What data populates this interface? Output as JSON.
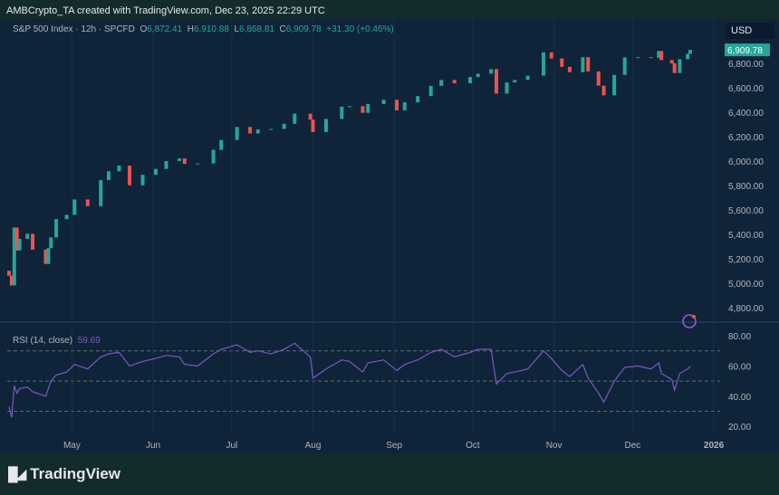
{
  "header": {
    "credit": "AMBCrypto_TA created with TradingView.com, Dec 23, 2025 22:29 UTC"
  },
  "legend": {
    "symbol": "S&P 500 Index · 12h · SPCFD",
    "o_label": "O",
    "o": "6,872.41",
    "h_label": "H",
    "h": "6,910.88",
    "l_label": "L",
    "l": "6,868.81",
    "c_label": "C",
    "c": "6,909.78",
    "change": "+31.30 (+0.46%)"
  },
  "currency": "USD",
  "last_price_label": "6,909.78",
  "rsi_legend": {
    "label": "RSI (14, close)",
    "value": "59.69"
  },
  "brand": {
    "name": "TradingView",
    "logo_text": "TV"
  },
  "colors": {
    "up": "#26a69a",
    "down": "#ef5350",
    "rsi": "#7e57c2",
    "background": "#0f2438"
  },
  "chart_data": {
    "type": "candlestick",
    "price_axis": {
      "ticks": [
        4800,
        5000,
        5200,
        5400,
        5600,
        5800,
        6000,
        6200,
        6400,
        6600,
        6800
      ],
      "tick_labels": [
        "4,800.00",
        "5,000.00",
        "5,200.00",
        "5,400.00",
        "5,600.00",
        "5,800.00",
        "6,000.00",
        "6,200.00",
        "6,400.00",
        "6,600.00",
        "6,800.00"
      ]
    },
    "rsi_axis": {
      "ticks": [
        20,
        40,
        60,
        80
      ],
      "tick_labels": [
        "20.00",
        "40.00",
        "60.00",
        "80.00"
      ],
      "bands": [
        30,
        50,
        70
      ]
    },
    "x_axis": {
      "ticks": [
        {
          "date": "2025-05-01",
          "label": "May"
        },
        {
          "date": "2025-06-01",
          "label": "Jun"
        },
        {
          "date": "2025-07-01",
          "label": "Jul"
        },
        {
          "date": "2025-08-01",
          "label": "Aug"
        },
        {
          "date": "2025-09-01",
          "label": "Sep"
        },
        {
          "date": "2025-10-01",
          "label": "Oct"
        },
        {
          "date": "2025-11-01",
          "label": "Nov"
        },
        {
          "date": "2025-12-01",
          "label": "Dec"
        },
        {
          "date": "2026-01-01",
          "label": "2026"
        }
      ]
    },
    "series": [
      {
        "d": "2025-04-07",
        "c": 5062,
        "rsi": 33
      },
      {
        "d": "2025-04-08",
        "c": 4982,
        "rsi": 26
      },
      {
        "d": "2025-04-09",
        "c": 5456,
        "rsi": 47
      },
      {
        "d": "2025-04-10",
        "c": 5268,
        "rsi": 42
      },
      {
        "d": "2025-04-11",
        "c": 5363,
        "rsi": 45
      },
      {
        "d": "2025-04-14",
        "c": 5405,
        "rsi": 46
      },
      {
        "d": "2025-04-16",
        "c": 5275,
        "rsi": 43
      },
      {
        "d": "2025-04-21",
        "c": 5158,
        "rsi": 40
      },
      {
        "d": "2025-04-22",
        "c": 5287,
        "rsi": 45
      },
      {
        "d": "2025-04-23",
        "c": 5375,
        "rsi": 50
      },
      {
        "d": "2025-04-25",
        "c": 5525,
        "rsi": 54
      },
      {
        "d": "2025-04-29",
        "c": 5560,
        "rsi": 56
      },
      {
        "d": "2025-05-02",
        "c": 5686,
        "rsi": 61
      },
      {
        "d": "2025-05-07",
        "c": 5631,
        "rsi": 58
      },
      {
        "d": "2025-05-12",
        "c": 5844,
        "rsi": 66
      },
      {
        "d": "2025-05-15",
        "c": 5916,
        "rsi": 68
      },
      {
        "d": "2025-05-19",
        "c": 5963,
        "rsi": 69
      },
      {
        "d": "2025-05-23",
        "c": 5802,
        "rsi": 60
      },
      {
        "d": "2025-05-28",
        "c": 5888,
        "rsi": 63
      },
      {
        "d": "2025-06-02",
        "c": 5936,
        "rsi": 65
      },
      {
        "d": "2025-06-06",
        "c": 6000,
        "rsi": 67
      },
      {
        "d": "2025-06-11",
        "c": 6022,
        "rsi": 66
      },
      {
        "d": "2025-06-13",
        "c": 5977,
        "rsi": 61
      },
      {
        "d": "2025-06-18",
        "c": 5981,
        "rsi": 60
      },
      {
        "d": "2025-06-24",
        "c": 6092,
        "rsi": 68
      },
      {
        "d": "2025-06-27",
        "c": 6173,
        "rsi": 71
      },
      {
        "d": "2025-07-03",
        "c": 6279,
        "rsi": 74
      },
      {
        "d": "2025-07-08",
        "c": 6226,
        "rsi": 69
      },
      {
        "d": "2025-07-11",
        "c": 6259,
        "rsi": 70
      },
      {
        "d": "2025-07-16",
        "c": 6263,
        "rsi": 68
      },
      {
        "d": "2025-07-21",
        "c": 6305,
        "rsi": 71
      },
      {
        "d": "2025-07-25",
        "c": 6388,
        "rsi": 75
      },
      {
        "d": "2025-07-31",
        "c": 6339,
        "rsi": 66
      },
      {
        "d": "2025-08-01",
        "c": 6238,
        "rsi": 52
      },
      {
        "d": "2025-08-06",
        "c": 6345,
        "rsi": 58
      },
      {
        "d": "2025-08-12",
        "c": 6445,
        "rsi": 64
      },
      {
        "d": "2025-08-15",
        "c": 6449,
        "rsi": 63
      },
      {
        "d": "2025-08-20",
        "c": 6395,
        "rsi": 56
      },
      {
        "d": "2025-08-22",
        "c": 6467,
        "rsi": 62
      },
      {
        "d": "2025-08-28",
        "c": 6502,
        "rsi": 64
      },
      {
        "d": "2025-09-02",
        "c": 6415,
        "rsi": 57
      },
      {
        "d": "2025-09-05",
        "c": 6481,
        "rsi": 61
      },
      {
        "d": "2025-09-10",
        "c": 6532,
        "rsi": 64
      },
      {
        "d": "2025-09-15",
        "c": 6615,
        "rsi": 69
      },
      {
        "d": "2025-09-19",
        "c": 6664,
        "rsi": 71
      },
      {
        "d": "2025-09-24",
        "c": 6637,
        "rsi": 66
      },
      {
        "d": "2025-09-30",
        "c": 6688,
        "rsi": 69
      },
      {
        "d": "2025-10-03",
        "c": 6715,
        "rsi": 71
      },
      {
        "d": "2025-10-08",
        "c": 6753,
        "rsi": 71
      },
      {
        "d": "2025-10-10",
        "c": 6552,
        "rsi": 48
      },
      {
        "d": "2025-10-14",
        "c": 6644,
        "rsi": 55
      },
      {
        "d": "2025-10-17",
        "c": 6664,
        "rsi": 56
      },
      {
        "d": "2025-10-22",
        "c": 6699,
        "rsi": 58
      },
      {
        "d": "2025-10-28",
        "c": 6890,
        "rsi": 70
      },
      {
        "d": "2025-10-31",
        "c": 6840,
        "rsi": 65
      },
      {
        "d": "2025-11-04",
        "c": 6771,
        "rsi": 57
      },
      {
        "d": "2025-11-07",
        "c": 6728,
        "rsi": 53
      },
      {
        "d": "2025-11-12",
        "c": 6850,
        "rsi": 61
      },
      {
        "d": "2025-11-14",
        "c": 6734,
        "rsi": 52
      },
      {
        "d": "2025-11-18",
        "c": 6617,
        "rsi": 42
      },
      {
        "d": "2025-11-20",
        "c": 6538,
        "rsi": 36
      },
      {
        "d": "2025-11-24",
        "c": 6705,
        "rsi": 50
      },
      {
        "d": "2025-11-28",
        "c": 6849,
        "rsi": 59
      },
      {
        "d": "2025-12-03",
        "c": 6850,
        "rsi": 60
      },
      {
        "d": "2025-12-08",
        "c": 6846,
        "rsi": 58
      },
      {
        "d": "2025-12-11",
        "c": 6901,
        "rsi": 62
      },
      {
        "d": "2025-12-12",
        "c": 6827,
        "rsi": 55
      },
      {
        "d": "2025-12-16",
        "c": 6800,
        "rsi": 51
      },
      {
        "d": "2025-12-17",
        "c": 6721,
        "rsi": 44
      },
      {
        "d": "2025-12-19",
        "c": 6834,
        "rsi": 55
      },
      {
        "d": "2025-12-22",
        "c": 6878,
        "rsi": 58
      },
      {
        "d": "2025-12-23",
        "c": 6909.78,
        "rsi": 59.69
      }
    ]
  }
}
